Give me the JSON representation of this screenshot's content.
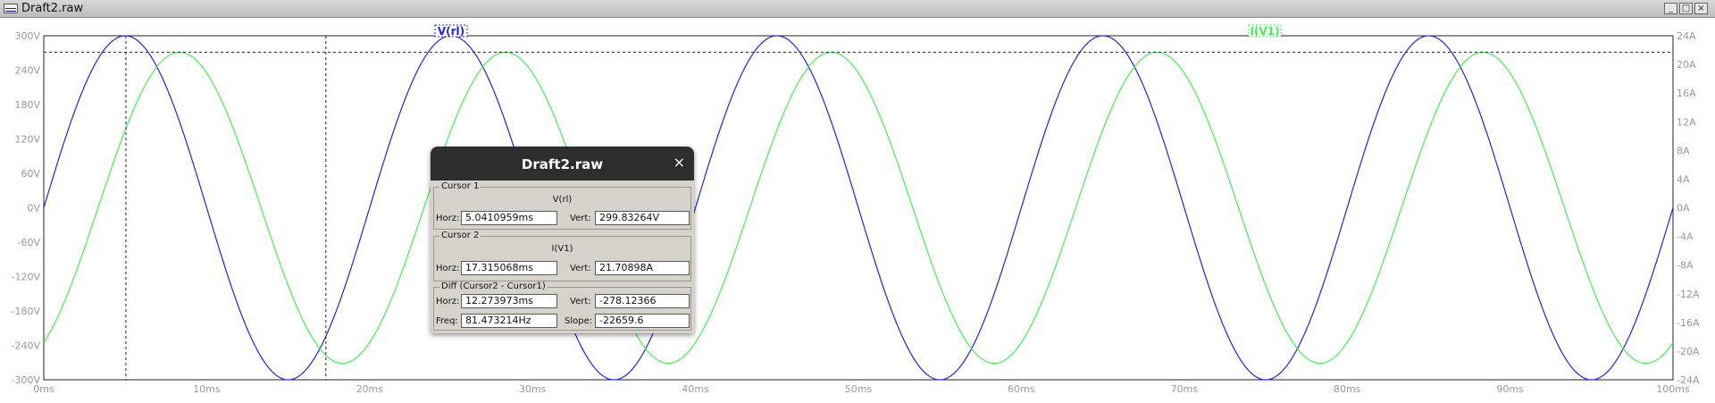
{
  "window": {
    "title": "Draft2.raw",
    "buttons": [
      "minimize",
      "maximize",
      "close"
    ]
  },
  "chart_data": {
    "type": "line",
    "x_unit": "ms",
    "xlim": [
      0,
      100
    ],
    "x_ticks": [
      "0ms",
      "10ms",
      "20ms",
      "30ms",
      "40ms",
      "50ms",
      "60ms",
      "70ms",
      "80ms",
      "90ms",
      "100ms"
    ],
    "y_left_ticks": [
      "300V",
      "240V",
      "180V",
      "120V",
      "60V",
      "0V",
      "-60V",
      "-120V",
      "-180V",
      "-240V",
      "-300V"
    ],
    "y_left_range": [
      -300,
      300
    ],
    "y_right_ticks": [
      "24A",
      "20A",
      "16A",
      "12A",
      "8A",
      "4A",
      "0A",
      "-4A",
      "-8A",
      "-12A",
      "-16A",
      "-20A",
      "-24A"
    ],
    "y_right_range": [
      -24,
      24
    ],
    "series": [
      {
        "name": "V(rl)",
        "color": "#2222dd",
        "axis": "left",
        "waveform": "sine",
        "amplitude": 300,
        "frequency_hz": 50,
        "phase_deg": 0
      },
      {
        "name": "I(V1)",
        "color": "#44ee55",
        "axis": "right",
        "waveform": "sine",
        "amplitude": 21.7,
        "frequency_hz": 50,
        "phase_deg": -60
      }
    ],
    "cursors": [
      {
        "id": 1,
        "x_ms": 5.0410959
      },
      {
        "id": 2,
        "x_ms": 17.315068
      }
    ],
    "cursor_level_right_axis": 21.70898
  },
  "dialog": {
    "title": "Draft2.raw",
    "close_symbol": "×",
    "cursor1": {
      "group": "Cursor 1",
      "trace": "V(rl)",
      "horz_label": "Horz:",
      "horz": "5.0410959ms",
      "vert_label": "Vert:",
      "vert": "299.83264V"
    },
    "cursor2": {
      "group": "Cursor 2",
      "trace": "I(V1)",
      "horz_label": "Horz:",
      "horz": "17.315068ms",
      "vert_label": "Vert:",
      "vert": "21.70898A"
    },
    "diff": {
      "group": "Diff (Cursor2 - Cursor1)",
      "horz_label": "Horz:",
      "horz": "12.273973ms",
      "vert_label": "Vert:",
      "vert": "-278.12366",
      "freq_label": "Freq:",
      "freq": "81.473214Hz",
      "slope_label": "Slope:",
      "slope": "-22659.6"
    }
  }
}
